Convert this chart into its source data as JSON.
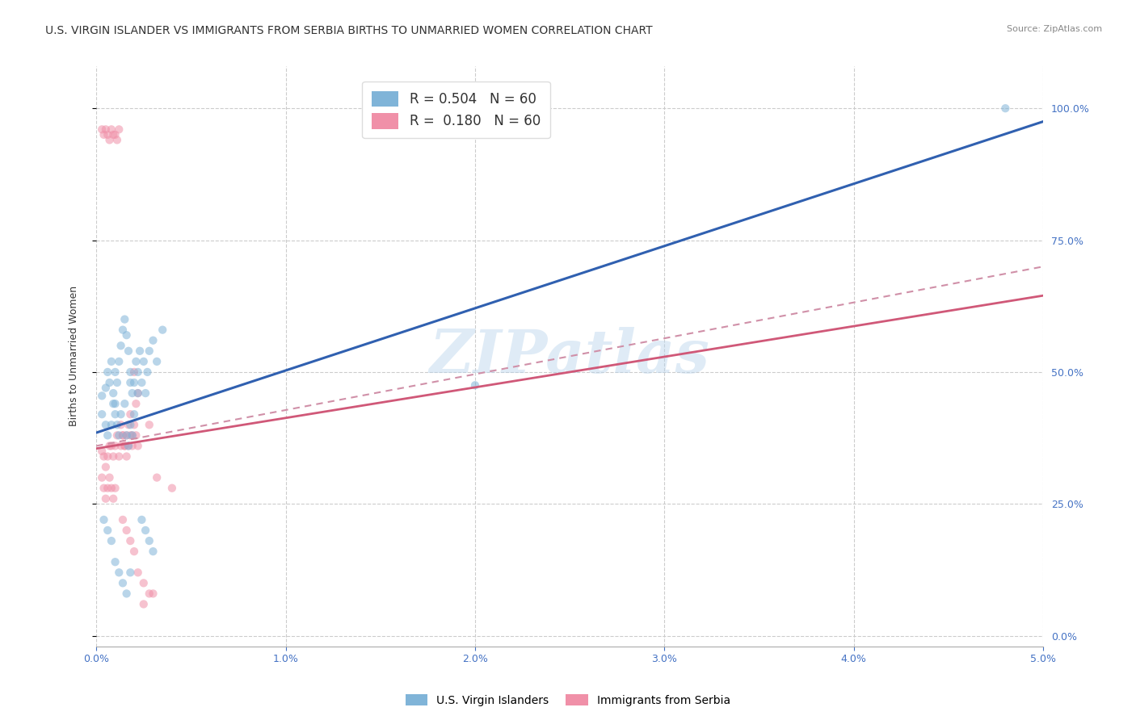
{
  "title": "U.S. VIRGIN ISLANDER VS IMMIGRANTS FROM SERBIA BIRTHS TO UNMARRIED WOMEN CORRELATION CHART",
  "source": "Source: ZipAtlas.com",
  "ylabel": "Births to Unmarried Women",
  "xlim": [
    0.0,
    0.05
  ],
  "ylim": [
    -0.02,
    1.08
  ],
  "watermark": "ZIPatlas",
  "blue_scatter_x": [
    0.0003,
    0.0005,
    0.0006,
    0.0007,
    0.0008,
    0.0009,
    0.001,
    0.001,
    0.0011,
    0.0012,
    0.0013,
    0.0014,
    0.0015,
    0.0016,
    0.0017,
    0.0018,
    0.0018,
    0.0019,
    0.002,
    0.0021,
    0.0022,
    0.0023,
    0.0024,
    0.0025,
    0.0026,
    0.0027,
    0.0028,
    0.003,
    0.0032,
    0.0035,
    0.0003,
    0.0005,
    0.0006,
    0.0008,
    0.0009,
    0.001,
    0.0011,
    0.0012,
    0.0013,
    0.0015,
    0.0016,
    0.0017,
    0.0018,
    0.0019,
    0.002,
    0.0022,
    0.0024,
    0.0026,
    0.0028,
    0.003,
    0.0004,
    0.0006,
    0.0008,
    0.001,
    0.0012,
    0.0014,
    0.0016,
    0.0018,
    0.02,
    0.048
  ],
  "blue_scatter_y": [
    0.455,
    0.47,
    0.5,
    0.48,
    0.52,
    0.46,
    0.5,
    0.44,
    0.48,
    0.52,
    0.55,
    0.58,
    0.6,
    0.57,
    0.54,
    0.5,
    0.48,
    0.46,
    0.48,
    0.52,
    0.5,
    0.54,
    0.48,
    0.52,
    0.46,
    0.5,
    0.54,
    0.56,
    0.52,
    0.58,
    0.42,
    0.4,
    0.38,
    0.4,
    0.44,
    0.42,
    0.4,
    0.38,
    0.42,
    0.44,
    0.38,
    0.36,
    0.4,
    0.38,
    0.42,
    0.46,
    0.22,
    0.2,
    0.18,
    0.16,
    0.22,
    0.2,
    0.18,
    0.14,
    0.12,
    0.1,
    0.08,
    0.12,
    0.475,
    1.0
  ],
  "pink_scatter_x": [
    0.0003,
    0.0004,
    0.0005,
    0.0006,
    0.0007,
    0.0008,
    0.0009,
    0.001,
    0.0011,
    0.0012,
    0.0013,
    0.0014,
    0.0015,
    0.0016,
    0.0017,
    0.0018,
    0.0019,
    0.002,
    0.0021,
    0.0022,
    0.0003,
    0.0004,
    0.0005,
    0.0006,
    0.0007,
    0.0008,
    0.0009,
    0.001,
    0.0011,
    0.0012,
    0.0013,
    0.0014,
    0.0015,
    0.0016,
    0.0017,
    0.0018,
    0.0019,
    0.002,
    0.0021,
    0.0022,
    0.0003,
    0.0004,
    0.0005,
    0.0006,
    0.0007,
    0.0008,
    0.0009,
    0.001,
    0.0014,
    0.0016,
    0.0018,
    0.002,
    0.0022,
    0.0025,
    0.0028,
    0.003,
    0.0028,
    0.0032,
    0.004,
    0.0025
  ],
  "pink_scatter_y": [
    0.96,
    0.95,
    0.96,
    0.95,
    0.94,
    0.96,
    0.95,
    0.95,
    0.94,
    0.96,
    0.4,
    0.38,
    0.36,
    0.38,
    0.4,
    0.42,
    0.38,
    0.5,
    0.44,
    0.46,
    0.35,
    0.34,
    0.32,
    0.34,
    0.36,
    0.36,
    0.34,
    0.36,
    0.38,
    0.34,
    0.36,
    0.38,
    0.36,
    0.34,
    0.36,
    0.38,
    0.36,
    0.4,
    0.38,
    0.36,
    0.3,
    0.28,
    0.26,
    0.28,
    0.3,
    0.28,
    0.26,
    0.28,
    0.22,
    0.2,
    0.18,
    0.16,
    0.12,
    0.1,
    0.08,
    0.08,
    0.4,
    0.3,
    0.28,
    0.06
  ],
  "blue_line_x": [
    0.0,
    0.05
  ],
  "blue_line_y0": 0.385,
  "blue_line_y1": 0.975,
  "pink_line_x": [
    0.0,
    0.05
  ],
  "pink_line_y0": 0.355,
  "pink_line_y1": 0.645,
  "pink_dashed_line_y0": 0.36,
  "pink_dashed_line_y1": 0.7,
  "scatter_alpha": 0.55,
  "scatter_size": 55,
  "blue_color": "#80b4d8",
  "pink_color": "#f090a8",
  "blue_line_color": "#3060b0",
  "pink_line_color": "#d05878",
  "pink_dash_color": "#d090a8",
  "grid_color": "#cccccc",
  "background_color": "#ffffff",
  "title_fontsize": 10,
  "axis_label_fontsize": 9,
  "tick_fontsize": 9,
  "tick_color": "#4472c4"
}
